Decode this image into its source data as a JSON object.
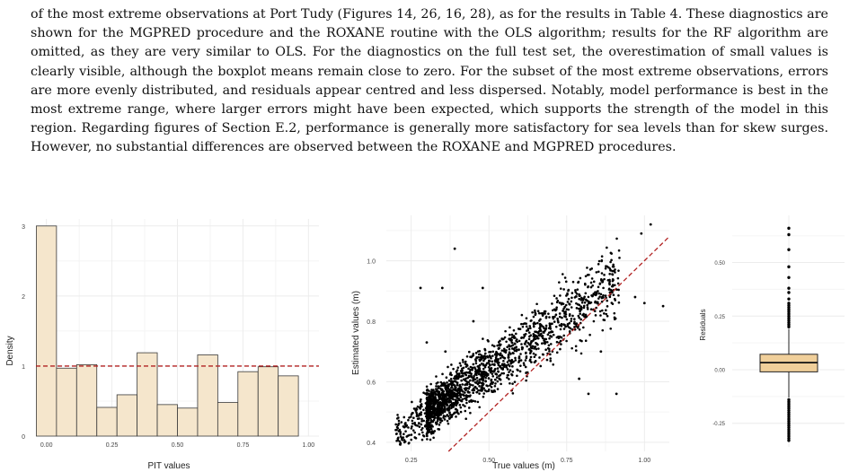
{
  "paragraph": "of the most extreme observations at Port Tudy (Figures 14, 26, 16, 28), as for the results in Table 4. These diagnostics are shown for the MGPRED procedure and the ROXANE routine with the OLS algorithm; results for the RF algorithm are omitted, as they are very similar to OLS. For the diagnostics on the full test set, the overestimation of small values is clearly visible, although the boxplot means remain close to zero. For the subset of the most extreme observations, errors are more evenly distributed, and residuals appear centred and less dispersed. Notably, model performance is best in the most extreme range, where larger errors might have been expected, which supports the strength of the model in this region. Regarding figures of Section E.2, performance is generally more satisfactory for sea levels than for skew surges. However, no substantial differences are observed between the ROXANE and MGPRED procedures.",
  "colors": {
    "bar_fill": "#f5e6cc",
    "bar_stroke": "#3a3a3a",
    "ref_line": "#b22222",
    "box_fill": "#f0cf9a",
    "grid": "#ececec",
    "points": "#000000"
  },
  "chart_data": [
    {
      "type": "bar",
      "title": "",
      "xlabel": "PIT values",
      "ylabel": "Density",
      "xlim": [
        -0.04,
        1.04
      ],
      "ylim": [
        0,
        3.1
      ],
      "xticks": [
        "0.00",
        "0.25",
        "0.50",
        "0.75",
        "1.00"
      ],
      "yticks": [
        "0",
        "1",
        "2",
        "3"
      ],
      "bin_width": 0.0769,
      "bin_centers": [
        0.0,
        0.0769,
        0.1538,
        0.2308,
        0.3077,
        0.3846,
        0.4615,
        0.5385,
        0.6154,
        0.6923,
        0.7692,
        0.8462,
        0.9231,
        1.0
      ],
      "values": [
        3.0,
        0.97,
        1.02,
        0.41,
        0.59,
        1.19,
        0.45,
        0.4,
        1.16,
        0.48,
        0.92,
        0.99,
        0.86,
        0.0
      ],
      "reference_line": {
        "y": 1,
        "style": "dashed"
      },
      "grid": true
    },
    {
      "type": "scatter",
      "title": "",
      "xlabel": "True values (m)",
      "ylabel": "Estimated values (m)",
      "xlim": [
        0.17,
        1.08
      ],
      "ylim": [
        0.37,
        1.15
      ],
      "xticks": [
        "0.25",
        "0.50",
        "0.75",
        "1.00"
      ],
      "yticks": [
        "0.4",
        "0.6",
        "0.8",
        "1.0"
      ],
      "reference_line": {
        "slope": 1,
        "intercept": 0,
        "style": "dashed"
      },
      "points_note": "dense cloud of ~2000 points following the identity line",
      "highlight_points": [
        [
          0.39,
          1.04
        ],
        [
          1.02,
          1.12
        ],
        [
          0.99,
          1.09
        ],
        [
          0.28,
          0.91
        ],
        [
          0.35,
          0.91
        ],
        [
          0.48,
          0.91
        ],
        [
          1.06,
          0.85
        ],
        [
          1.0,
          0.86
        ],
        [
          0.97,
          0.88
        ],
        [
          0.91,
          0.56
        ],
        [
          0.82,
          0.56
        ],
        [
          0.79,
          0.61
        ],
        [
          0.3,
          0.73
        ],
        [
          0.36,
          0.7
        ],
        [
          0.45,
          0.8
        ],
        [
          0.86,
          0.7
        ]
      ],
      "grid": true
    },
    {
      "type": "box",
      "title": "",
      "xlabel": "",
      "ylabel": "Residuals",
      "ylim": [
        -0.36,
        0.72
      ],
      "yticks": [
        "-0.25",
        "0.00",
        "0.25",
        "0.50"
      ],
      "q1": -0.01,
      "median": 0.033,
      "q3": 0.072,
      "whisker_low": -0.13,
      "whisker_high": 0.19,
      "outliers": [
        -0.33,
        -0.32,
        -0.31,
        -0.3,
        -0.29,
        -0.28,
        -0.27,
        -0.26,
        -0.25,
        -0.24,
        -0.23,
        -0.22,
        -0.21,
        -0.2,
        -0.19,
        -0.18,
        -0.17,
        -0.16,
        -0.15,
        -0.14,
        0.2,
        0.21,
        0.22,
        0.23,
        0.24,
        0.25,
        0.26,
        0.27,
        0.28,
        0.29,
        0.3,
        0.31,
        0.33,
        0.36,
        0.38,
        0.43,
        0.48,
        0.56,
        0.63,
        0.66
      ],
      "grid": true
    }
  ]
}
